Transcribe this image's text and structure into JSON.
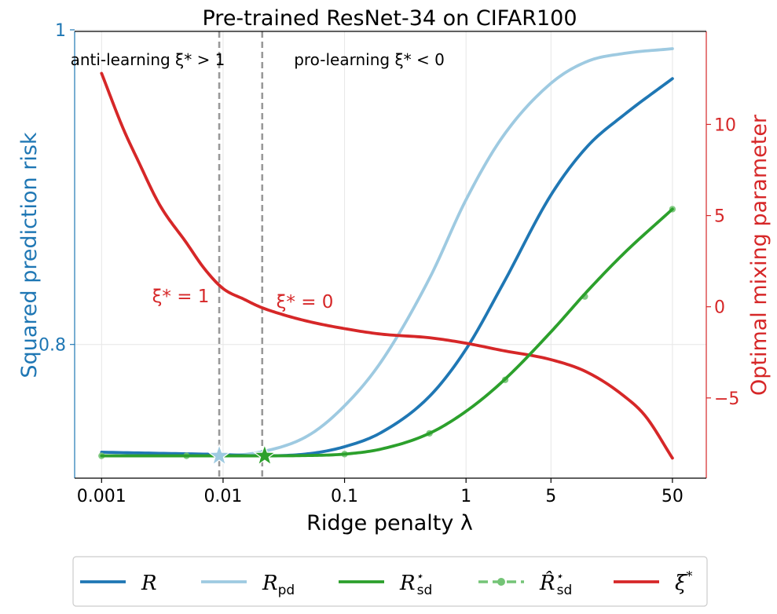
{
  "chart_data": {
    "type": "line",
    "title": "Pre-trained ResNet-34 on CIFAR100",
    "xlabel": "Ridge penalty λ",
    "ylabel_left": "Squared prediction risk",
    "ylabel_right": "Optimal mixing parameter",
    "xscale": "log",
    "xlim": [
      0.0006,
      95
    ],
    "ylim_left": [
      0.715,
      0.999
    ],
    "ylim_right": [
      -9.4,
      15.1
    ],
    "x_ticks": [
      0.001,
      0.01,
      0.1,
      1,
      5,
      50
    ],
    "x_tick_labels": [
      "0.001",
      "0.01",
      "0.1",
      "1",
      "5",
      "50"
    ],
    "y_left_ticks": [
      0.8,
      1.0
    ],
    "y_left_tick_labels": [
      "0.8",
      "1"
    ],
    "y_right_ticks": [
      -5,
      0,
      5,
      10
    ],
    "y_right_tick_labels": [
      "−5",
      "0",
      "5",
      "10"
    ],
    "grid": true,
    "legend_position": "below plot",
    "colors": {
      "R": "#1f77b4",
      "R_pd": "#9ecae1",
      "R_sd": "#2ca02c",
      "R_sd_hat": "#74c476",
      "xi": "#d62728",
      "vline": "#999999",
      "left_axis": "#1f77b4",
      "right_axis": "#d62728"
    },
    "series": [
      {
        "name": "R",
        "axis": "left",
        "x": [
          0.001,
          0.003,
          0.01,
          0.02,
          0.05,
          0.1,
          0.2,
          0.5,
          1,
          2,
          5,
          10,
          20,
          50
        ],
        "y": [
          0.7315,
          0.7308,
          0.73,
          0.7292,
          0.7305,
          0.735,
          0.744,
          0.767,
          0.797,
          0.838,
          0.895,
          0.926,
          0.946,
          0.969
        ]
      },
      {
        "name": "R_pd",
        "axis": "left",
        "x": [
          0.001,
          0.003,
          0.01,
          0.02,
          0.05,
          0.1,
          0.2,
          0.5,
          1,
          2,
          5,
          10,
          20,
          50
        ],
        "y": [
          0.7292,
          0.7292,
          0.7295,
          0.7315,
          0.742,
          0.761,
          0.789,
          0.842,
          0.892,
          0.932,
          0.966,
          0.98,
          0.985,
          0.988
        ]
      },
      {
        "name": "R_sd",
        "axis": "left",
        "x": [
          0.001,
          0.003,
          0.01,
          0.02,
          0.05,
          0.1,
          0.2,
          0.5,
          1,
          2,
          5,
          10,
          20,
          50
        ],
        "y": [
          0.7292,
          0.7292,
          0.7292,
          0.7292,
          0.7294,
          0.7303,
          0.7335,
          0.7435,
          0.7575,
          0.7765,
          0.808,
          0.834,
          0.858,
          0.886
        ]
      },
      {
        "name": "R_sd_hat",
        "axis": "left",
        "x": [
          0.001,
          0.005,
          0.022,
          0.1,
          0.5,
          2.1,
          9.5,
          50
        ],
        "y": [
          0.7292,
          0.7292,
          0.7292,
          0.7303,
          0.7435,
          0.7775,
          0.8305,
          0.886
        ]
      },
      {
        "name": "ξ*",
        "axis": "right",
        "x": [
          0.001,
          0.0015,
          0.002,
          0.003,
          0.005,
          0.007,
          0.01,
          0.015,
          0.02,
          0.03,
          0.05,
          0.1,
          0.2,
          0.5,
          1,
          2,
          5,
          10,
          20,
          30,
          50
        ],
        "y": [
          12.8,
          9.8,
          8.0,
          5.6,
          3.5,
          2.1,
          1.0,
          0.4,
          0.0,
          -0.4,
          -0.8,
          -1.2,
          -1.5,
          -1.7,
          -2.0,
          -2.4,
          -2.9,
          -3.6,
          -4.9,
          -6.0,
          -8.3
        ]
      }
    ],
    "vlines": [
      0.0093,
      0.021
    ],
    "stars": [
      {
        "series": "R_pd",
        "x": 0.0093,
        "y": 0.7292
      },
      {
        "series": "R_sd",
        "x": 0.022,
        "y": 0.7292
      }
    ],
    "annotations": {
      "anti_region": "anti-learning ξ* > 1",
      "pro_region": "pro-learning ξ* < 0",
      "xi_one": "ξ* = 1",
      "xi_zero": "ξ* = 0"
    },
    "legend": [
      {
        "key": "R",
        "label": "R",
        "sub": "",
        "sup": "",
        "style": "line"
      },
      {
        "key": "R_pd",
        "label": "R",
        "sub": "pd",
        "sup": "",
        "style": "line"
      },
      {
        "key": "R_sd",
        "label": "R",
        "sub": "sd",
        "sup": "⋆",
        "style": "line"
      },
      {
        "key": "R_sd_hat",
        "label": "R̂",
        "sub": "sd",
        "sup": "⋆",
        "style": "dashed-dot"
      },
      {
        "key": "xi",
        "label": "ξ",
        "sub": "",
        "sup": "*",
        "style": "line"
      }
    ]
  }
}
